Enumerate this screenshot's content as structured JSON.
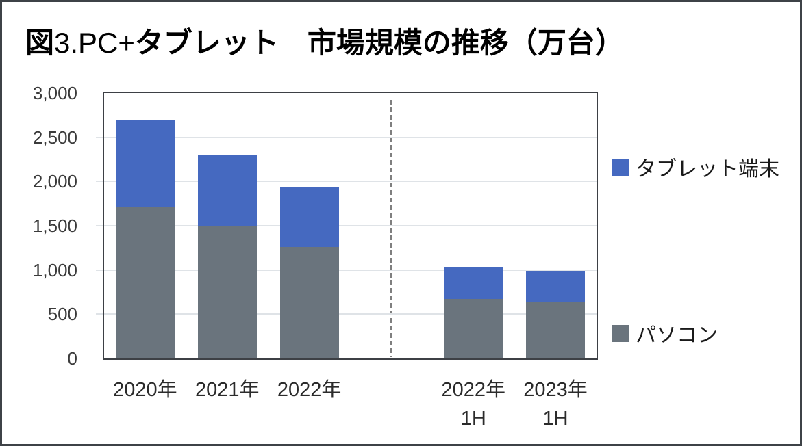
{
  "title": {
    "part1": "図",
    "part2": "3.PC+",
    "part3": "タブレット　市場規模の推移（万台）",
    "full": "図3.PC+タブレット 市場規模の推移（万台）"
  },
  "legend": {
    "items": [
      {
        "label": "タブレット端末",
        "color": "#4569C0"
      },
      {
        "label": "パソコン",
        "color": "#6A747D"
      }
    ]
  },
  "chart_data": {
    "type": "bar",
    "stacked": true,
    "title": "図3.PC+タブレット 市場規模の推移（万台）",
    "unit": "万台",
    "categories": [
      "2020年",
      "2021年",
      "2022年",
      "2022年 1H",
      "2023年 1H"
    ],
    "slot_labels": [
      [
        "2020年"
      ],
      [
        "2021年"
      ],
      [
        "2022年"
      ],
      null,
      [
        "2022年",
        "1H"
      ],
      [
        "2023年",
        "1H"
      ]
    ],
    "bar_slots": [
      0,
      1,
      2,
      4,
      5
    ],
    "divider_slot": 3,
    "series": [
      {
        "name": "パソコン",
        "color": "#6A747D",
        "values": [
          1715,
          1490,
          1260,
          670,
          640
        ]
      },
      {
        "name": "タブレット端末",
        "color": "#4569C0",
        "values": [
          975,
          810,
          670,
          355,
          350
        ]
      }
    ],
    "totals": [
      2690,
      2300,
      1930,
      1025,
      990
    ],
    "ylim": [
      0,
      3000
    ],
    "ytick_step": 500,
    "ytick_labels": [
      "0",
      "500",
      "1,000",
      "1,500",
      "2,000",
      "2,500",
      "3,000"
    ],
    "grid": true,
    "legend_position": "right",
    "divider_style": "gray-dashed-vertical",
    "colors": {
      "axis": "#3d4045",
      "gridline": "#dfe3e7",
      "divider": "#7f7f7f",
      "frame_border": "#3e4247"
    }
  }
}
